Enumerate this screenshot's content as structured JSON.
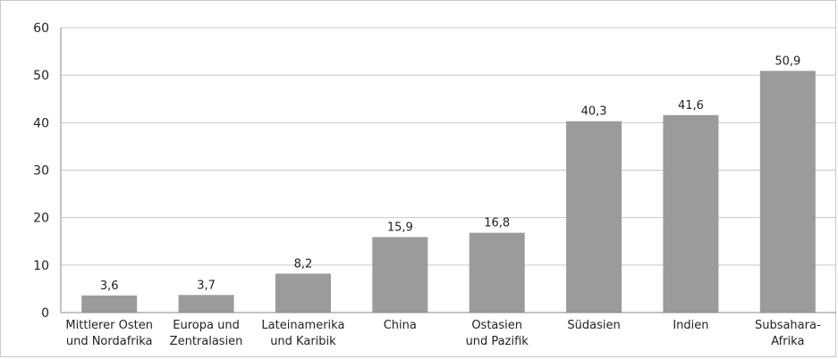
{
  "chart_data": {
    "type": "bar",
    "categories": [
      [
        "Mittlerer Osten",
        "und Nordafrika"
      ],
      [
        "Europa und",
        "Zentralasien"
      ],
      [
        "Lateinamerika",
        "und Karibik"
      ],
      [
        "China"
      ],
      [
        "Ostasien",
        "und Pazifik"
      ],
      [
        "Südasien"
      ],
      [
        "Indien"
      ],
      [
        "Subsahara-",
        "Afrika"
      ]
    ],
    "values": [
      3.6,
      3.7,
      8.2,
      15.9,
      16.8,
      40.3,
      41.6,
      50.9
    ],
    "value_labels": [
      "3,6",
      "3,7",
      "8,2",
      "15,9",
      "16,8",
      "40,3",
      "41,6",
      "50,9"
    ],
    "y_ticks": [
      "0",
      "10",
      "20",
      "30",
      "40",
      "50",
      "60"
    ],
    "ylim": [
      0,
      60
    ],
    "grid": true,
    "legend": "none",
    "colors": {
      "bar": "#9b9b9c",
      "grid": "#c8c8c8",
      "axis": "#888888"
    }
  }
}
